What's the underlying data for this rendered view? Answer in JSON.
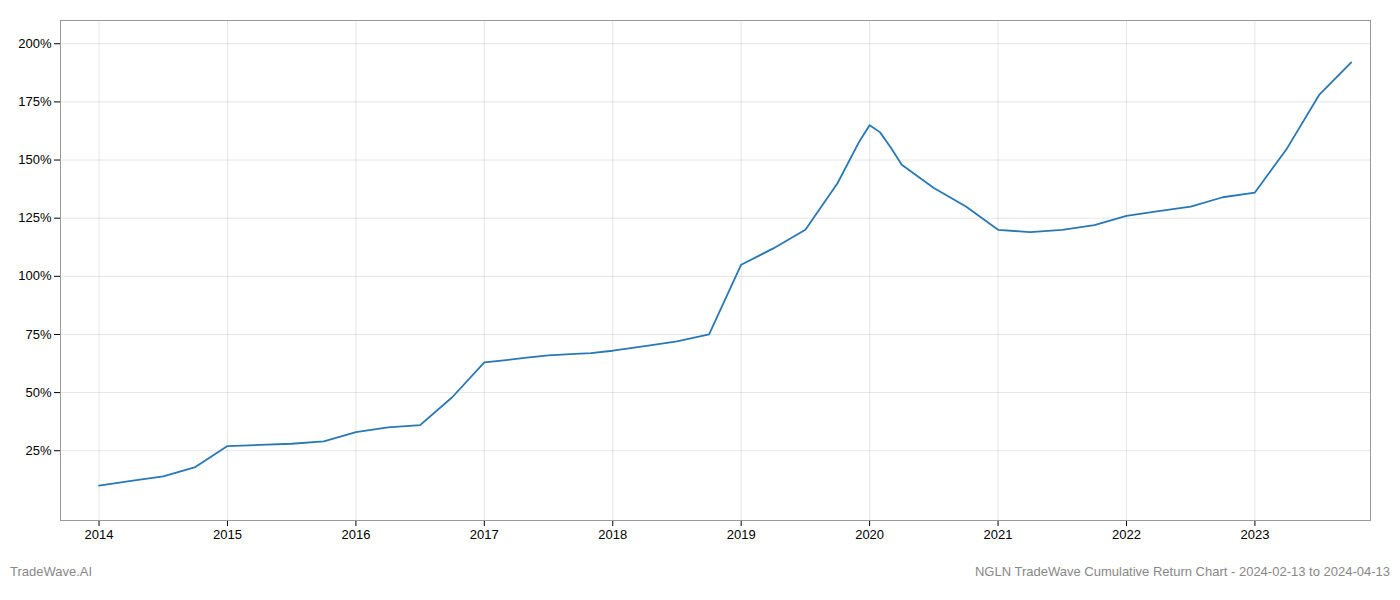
{
  "chart_data": {
    "type": "line",
    "title": "NGLN TradeWave Cumulative Return Chart - 2024-02-13 to 2024-04-13",
    "annotations": [
      "TradeWave.AI"
    ],
    "x": [
      2014.0,
      2014.25,
      2014.5,
      2014.75,
      2015.0,
      2015.25,
      2015.5,
      2015.75,
      2016.0,
      2016.25,
      2016.5,
      2016.75,
      2017.0,
      2017.17,
      2017.33,
      2017.5,
      2017.67,
      2017.83,
      2018.0,
      2018.25,
      2018.5,
      2018.75,
      2019.0,
      2019.25,
      2019.5,
      2019.75,
      2019.92,
      2020.0,
      2020.08,
      2020.17,
      2020.25,
      2020.5,
      2020.75,
      2021.0,
      2021.25,
      2021.5,
      2021.75,
      2022.0,
      2022.25,
      2022.5,
      2022.75,
      2023.0,
      2023.25,
      2023.5,
      2023.75
    ],
    "values": [
      10,
      12,
      14,
      18,
      27,
      27.5,
      28,
      29,
      33,
      35,
      36,
      48,
      63,
      64,
      65,
      66,
      66.5,
      67,
      68,
      70,
      72,
      75,
      105,
      112,
      120,
      140,
      158,
      165,
      162,
      155,
      148,
      138,
      130,
      120,
      119,
      120,
      122,
      126,
      128,
      130,
      134,
      136,
      155,
      178,
      192
    ],
    "color": "#2878b5",
    "xlim": [
      2013.7,
      2023.9
    ],
    "xticks": [
      2014,
      2015,
      2016,
      2017,
      2018,
      2019,
      2020,
      2021,
      2022,
      2023
    ],
    "ylim": [
      -5,
      210
    ],
    "yticks": [
      {
        "value": 25,
        "label": "25%"
      },
      {
        "value": 50,
        "label": "50%"
      },
      {
        "value": 75,
        "label": "75%"
      },
      {
        "value": 100,
        "label": "100%"
      },
      {
        "value": 125,
        "label": "125%"
      },
      {
        "value": 150,
        "label": "150%"
      },
      {
        "value": 175,
        "label": "175%"
      },
      {
        "value": 200,
        "label": "200%"
      }
    ],
    "grid": true
  }
}
